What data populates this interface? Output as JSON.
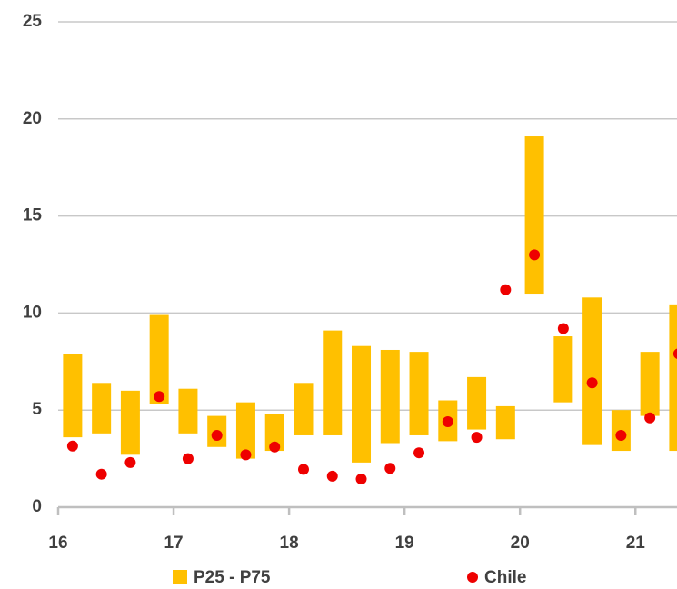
{
  "chart_data": {
    "type": "range-scatter",
    "x": [
      16.125,
      16.375,
      16.625,
      16.875,
      17.125,
      17.375,
      17.625,
      17.875,
      18.125,
      18.375,
      18.625,
      18.875,
      19.125,
      19.375,
      19.625,
      19.875,
      20.125,
      20.375,
      20.625,
      20.875,
      21.125,
      21.375
    ],
    "xlim": [
      16,
      21.36
    ],
    "xticks": [
      16,
      17,
      18,
      19,
      20,
      21
    ],
    "ylim": [
      0,
      25
    ],
    "yticks": [
      0,
      5,
      10,
      15,
      20,
      25
    ],
    "grid": true,
    "legend": "bottom",
    "series": [
      {
        "name": "P25 - P75",
        "type": "range",
        "color": "#ffc000",
        "low": [
          3.6,
          3.8,
          2.7,
          5.3,
          3.8,
          3.1,
          2.5,
          2.9,
          3.7,
          3.7,
          2.3,
          3.3,
          3.7,
          3.4,
          4.0,
          3.5,
          11.0,
          5.4,
          3.2,
          2.9,
          4.7,
          2.9
        ],
        "high": [
          7.9,
          6.4,
          6.0,
          9.9,
          6.1,
          4.7,
          5.4,
          4.8,
          6.4,
          9.1,
          8.3,
          8.1,
          8.0,
          5.5,
          6.7,
          5.2,
          19.1,
          8.8,
          10.8,
          5.0,
          8.0,
          10.4
        ]
      },
      {
        "name": "Chile",
        "type": "scatter",
        "color": "#ee0000",
        "values": [
          3.15,
          1.7,
          2.3,
          5.7,
          2.5,
          3.7,
          2.7,
          3.1,
          1.95,
          1.6,
          1.45,
          2.0,
          2.8,
          4.4,
          3.6,
          11.2,
          13.0,
          9.2,
          6.4,
          3.7,
          4.6,
          7.9
        ]
      }
    ]
  }
}
